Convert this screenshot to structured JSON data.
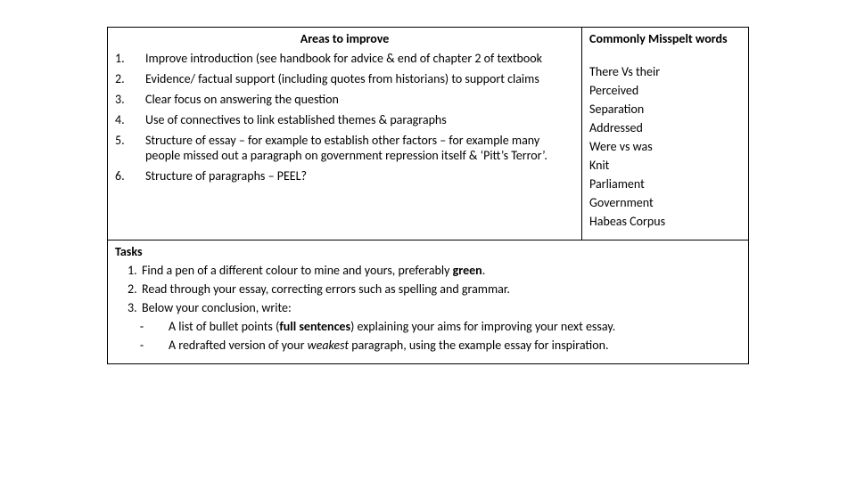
{
  "areas": {
    "title": "Areas to improve",
    "items": [
      {
        "n": "1.",
        "t": "Improve introduction (see handbook for advice & end of chapter 2 of textbook"
      },
      {
        "n": "2.",
        "t": "Evidence/ factual support (including quotes from historians) to support claims"
      },
      {
        "n": "3.",
        "t": "Clear focus on answering the question"
      },
      {
        "n": "4.",
        "t": "Use of connectives to link established themes & paragraphs"
      },
      {
        "n": "5.",
        "t": "Structure of essay – for example to establish other factors – for example many people missed out a paragraph on government repression itself & ‘Pitt’s Terror’."
      },
      {
        "n": "6.",
        "t": "Structure of paragraphs – PEEL?"
      }
    ]
  },
  "misspelt": {
    "title": "Commonly Misspelt words",
    "items": [
      "There Vs their",
      "Perceived",
      "Separation",
      "Addressed",
      "Were vs was",
      "Knit",
      "Parliament",
      "Government",
      "Habeas Corpus"
    ]
  },
  "tasks": {
    "title": "Tasks",
    "rows": [
      {
        "n": "1.",
        "pre": "Find a pen of a different colour to mine and yours, preferably ",
        "bold": "green",
        "post": "."
      },
      {
        "n": "2.",
        "pre": "Read through your essay, correcting errors such as spelling and grammar.",
        "bold": "",
        "post": ""
      },
      {
        "n": "3.",
        "pre": "Below your conclusion, write:",
        "bold": "",
        "post": ""
      }
    ],
    "subs": [
      {
        "dash": "-",
        "pre": "A list of bullet points (",
        "boldfull": "full sentences",
        "mid": ") explaining your aims for improving your next essay.",
        "ital": "",
        "post2": ""
      },
      {
        "dash": "-",
        "pre": "A redrafted version of your ",
        "boldfull": "",
        "mid": "",
        "ital": "weakest",
        "post2": " paragraph, using the example essay for inspiration."
      }
    ]
  }
}
